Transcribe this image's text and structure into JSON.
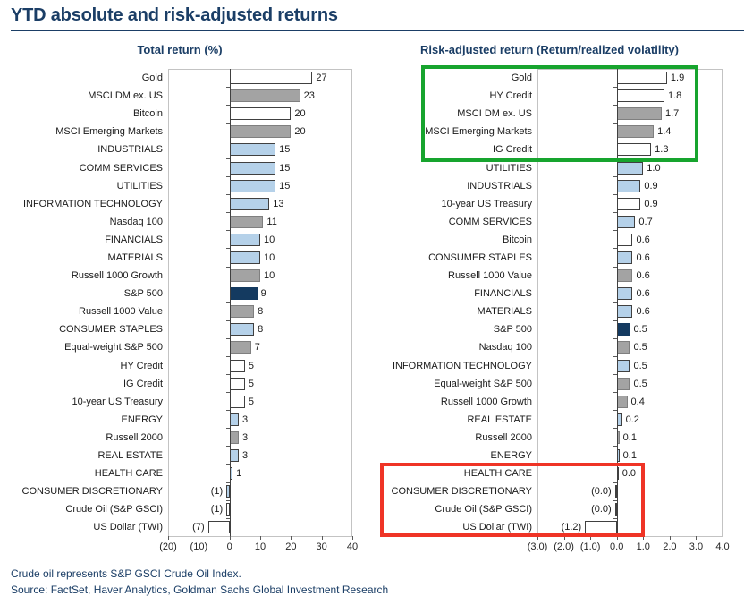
{
  "header": {
    "title": "YTD absolute and risk-adjusted returns"
  },
  "footnotes": [
    "Crude oil represents S&P GSCI Crude Oil Index.",
    "Source: FactSet, Haver Analytics, Goldman Sachs Global Investment Research"
  ],
  "colors": {
    "navy_text": "#1b3e66",
    "bar_white": "#ffffff",
    "bar_gray": "#a3a3a3",
    "bar_blue": "#b5d1e9",
    "bar_navy": "#143a60",
    "bar_border_dark": "#404040",
    "bar_border_gray": "#7f7f7f",
    "green_box": "#17a42e",
    "red_box": "#ef3426"
  },
  "chart_data": [
    {
      "type": "bar",
      "orientation": "horizontal",
      "title": "Total return (%)",
      "xlabel": "",
      "xlim": [
        -20,
        40
      ],
      "grid": false,
      "ticks": [
        {
          "value": -20,
          "label": "(20)"
        },
        {
          "value": -10,
          "label": "(10)"
        },
        {
          "value": 0,
          "label": "0"
        },
        {
          "value": 10,
          "label": "10"
        },
        {
          "value": 20,
          "label": "20"
        },
        {
          "value": 30,
          "label": "30"
        },
        {
          "value": 40,
          "label": "40"
        }
      ],
      "bars": [
        {
          "label": "Gold",
          "value": 27,
          "display": "27",
          "color": "white"
        },
        {
          "label": "MSCI DM ex. US",
          "value": 23,
          "display": "23",
          "color": "gray"
        },
        {
          "label": "Bitcoin",
          "value": 20,
          "display": "20",
          "color": "white"
        },
        {
          "label": "MSCI Emerging Markets",
          "value": 20,
          "display": "20",
          "color": "gray"
        },
        {
          "label": "INDUSTRIALS",
          "value": 15,
          "display": "15",
          "color": "blue"
        },
        {
          "label": "COMM SERVICES",
          "value": 15,
          "display": "15",
          "color": "blue"
        },
        {
          "label": "UTILITIES",
          "value": 15,
          "display": "15",
          "color": "blue"
        },
        {
          "label": "INFORMATION TECHNOLOGY",
          "value": 13,
          "display": "13",
          "color": "blue"
        },
        {
          "label": "Nasdaq 100",
          "value": 11,
          "display": "11",
          "color": "gray"
        },
        {
          "label": "FINANCIALS",
          "value": 10,
          "display": "10",
          "color": "blue"
        },
        {
          "label": "MATERIALS",
          "value": 10,
          "display": "10",
          "color": "blue"
        },
        {
          "label": "Russell 1000 Growth",
          "value": 10,
          "display": "10",
          "color": "gray"
        },
        {
          "label": "S&P 500",
          "value": 9,
          "display": "9",
          "color": "navy"
        },
        {
          "label": "Russell 1000 Value",
          "value": 8,
          "display": "8",
          "color": "gray"
        },
        {
          "label": "CONSUMER STAPLES",
          "value": 8,
          "display": "8",
          "color": "blue"
        },
        {
          "label": "Equal-weight S&P 500",
          "value": 7,
          "display": "7",
          "color": "gray"
        },
        {
          "label": "HY Credit",
          "value": 5,
          "display": "5",
          "color": "white"
        },
        {
          "label": "IG Credit",
          "value": 5,
          "display": "5",
          "color": "white"
        },
        {
          "label": "10-year US Treasury",
          "value": 5,
          "display": "5",
          "color": "white"
        },
        {
          "label": "ENERGY",
          "value": 3,
          "display": "3",
          "color": "blue"
        },
        {
          "label": "Russell 2000",
          "value": 3,
          "display": "3",
          "color": "gray"
        },
        {
          "label": "REAL ESTATE",
          "value": 3,
          "display": "3",
          "color": "blue"
        },
        {
          "label": "HEALTH CARE",
          "value": 1,
          "display": "1",
          "color": "blue"
        },
        {
          "label": "CONSUMER DISCRETIONARY",
          "value": -1,
          "display": "(1)",
          "color": "blue"
        },
        {
          "label": "Crude Oil (S&P GSCI)",
          "value": -1,
          "display": "(1)",
          "color": "white"
        },
        {
          "label": "US Dollar (TWI)",
          "value": -7,
          "display": "(7)",
          "color": "white"
        }
      ]
    },
    {
      "type": "bar",
      "orientation": "horizontal",
      "title": "Risk-adjusted return (Return/realized volatility)",
      "xlabel": "",
      "xlim": [
        -3,
        4
      ],
      "grid": false,
      "ticks": [
        {
          "value": -3,
          "label": "(3.0)"
        },
        {
          "value": -2,
          "label": "(2.0)"
        },
        {
          "value": -1,
          "label": "(1.0)"
        },
        {
          "value": 0,
          "label": "0.0"
        },
        {
          "value": 1,
          "label": "1.0"
        },
        {
          "value": 2,
          "label": "2.0"
        },
        {
          "value": 3,
          "label": "3.0"
        },
        {
          "value": 4,
          "label": "4.0"
        }
      ],
      "bars": [
        {
          "label": "Gold",
          "value": 1.9,
          "display": "1.9",
          "color": "white"
        },
        {
          "label": "HY Credit",
          "value": 1.8,
          "display": "1.8",
          "color": "white"
        },
        {
          "label": "MSCI DM ex. US",
          "value": 1.7,
          "display": "1.7",
          "color": "gray"
        },
        {
          "label": "MSCI Emerging Markets",
          "value": 1.4,
          "display": "1.4",
          "color": "gray"
        },
        {
          "label": "IG Credit",
          "value": 1.3,
          "display": "1.3",
          "color": "white"
        },
        {
          "label": "UTILITIES",
          "value": 1.0,
          "display": "1.0",
          "color": "blue"
        },
        {
          "label": "INDUSTRIALS",
          "value": 0.9,
          "display": "0.9",
          "color": "blue"
        },
        {
          "label": "10-year US Treasury",
          "value": 0.9,
          "display": "0.9",
          "color": "white"
        },
        {
          "label": "COMM SERVICES",
          "value": 0.7,
          "display": "0.7",
          "color": "blue"
        },
        {
          "label": "Bitcoin",
          "value": 0.6,
          "display": "0.6",
          "color": "white"
        },
        {
          "label": "CONSUMER STAPLES",
          "value": 0.6,
          "display": "0.6",
          "color": "blue"
        },
        {
          "label": "Russell 1000 Value",
          "value": 0.6,
          "display": "0.6",
          "color": "gray"
        },
        {
          "label": "FINANCIALS",
          "value": 0.6,
          "display": "0.6",
          "color": "blue"
        },
        {
          "label": "MATERIALS",
          "value": 0.6,
          "display": "0.6",
          "color": "blue"
        },
        {
          "label": "S&P 500",
          "value": 0.5,
          "display": "0.5",
          "color": "navy"
        },
        {
          "label": "Nasdaq 100",
          "value": 0.5,
          "display": "0.5",
          "color": "gray"
        },
        {
          "label": "INFORMATION TECHNOLOGY",
          "value": 0.5,
          "display": "0.5",
          "color": "blue"
        },
        {
          "label": "Equal-weight S&P 500",
          "value": 0.5,
          "display": "0.5",
          "color": "gray"
        },
        {
          "label": "Russell 1000 Growth",
          "value": 0.4,
          "display": "0.4",
          "color": "gray"
        },
        {
          "label": "REAL ESTATE",
          "value": 0.2,
          "display": "0.2",
          "color": "blue"
        },
        {
          "label": "Russell 2000",
          "value": 0.1,
          "display": "0.1",
          "color": "gray"
        },
        {
          "label": "ENERGY",
          "value": 0.1,
          "display": "0.1",
          "color": "blue"
        },
        {
          "label": "HEALTH CARE",
          "value": 0.0,
          "display": "0.0",
          "color": "blue"
        },
        {
          "label": "CONSUMER DISCRETIONARY",
          "value": 0.0,
          "display": "(0.0)",
          "color": "blue"
        },
        {
          "label": "Crude Oil (S&P GSCI)",
          "value": 0.0,
          "display": "(0.0)",
          "color": "blue"
        },
        {
          "label": "US Dollar (TWI)",
          "value": -1.2,
          "display": "(1.2)",
          "color": "white"
        }
      ],
      "annotations": [
        {
          "name": "top-performers-highlight",
          "shape": "box",
          "color_key": "green_box",
          "start_row": 0,
          "end_row": 4
        },
        {
          "name": "bottom-performers-highlight",
          "shape": "box",
          "color_key": "red_box",
          "start_row": 22,
          "end_row": 25
        }
      ]
    }
  ]
}
